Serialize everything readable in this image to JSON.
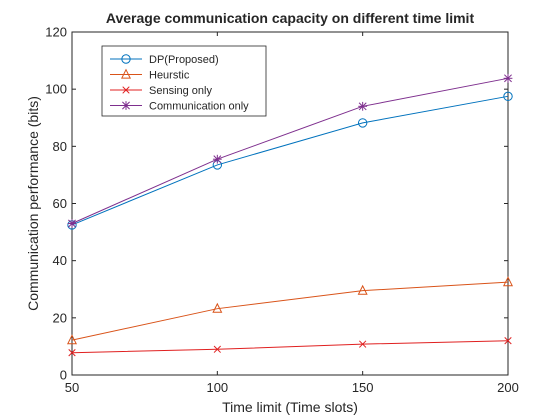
{
  "chart_data": {
    "type": "line",
    "title": "Average communication capacity on different time limit",
    "xlabel": "Time limit (Time slots)",
    "ylabel": "Communication performance (bits)",
    "x": [
      50,
      100,
      150,
      200
    ],
    "xlim": [
      50,
      200
    ],
    "ylim": [
      0,
      120
    ],
    "xticks": [
      50,
      100,
      150,
      200
    ],
    "yticks": [
      0,
      20,
      40,
      60,
      80,
      100,
      120
    ],
    "grid": false,
    "legend_position": "top-left",
    "series": [
      {
        "name": "DP(Proposed)",
        "values": [
          52.5,
          73.5,
          88.2,
          97.5
        ],
        "color": "#0072BD",
        "marker": "circle"
      },
      {
        "name": "Heurstic",
        "values": [
          12.2,
          23.2,
          29.5,
          32.5
        ],
        "color": "#D95319",
        "marker": "triangle"
      },
      {
        "name": "Sensing only",
        "values": [
          7.8,
          9.0,
          10.8,
          12.0
        ],
        "color": "#E02020",
        "marker": "x"
      },
      {
        "name": "Communication only",
        "values": [
          53.0,
          75.5,
          94.0,
          103.8
        ],
        "color": "#7E2F8E",
        "marker": "asterisk"
      }
    ]
  }
}
